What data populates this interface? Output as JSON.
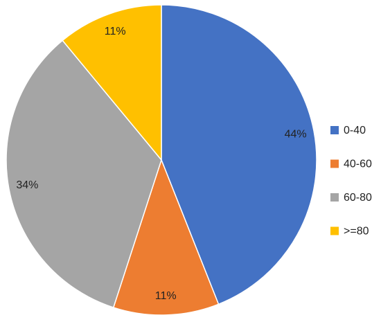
{
  "chart_data": {
    "type": "pie",
    "categories": [
      "0-40",
      "40-60",
      "60-80",
      ">=80"
    ],
    "values": [
      44,
      11,
      34,
      11
    ],
    "value_labels": [
      "44%",
      "11%",
      "34%",
      "11%"
    ],
    "colors": [
      "#4472c4",
      "#ed7d31",
      "#a5a5a5",
      "#ffc000"
    ],
    "legend": "right"
  }
}
